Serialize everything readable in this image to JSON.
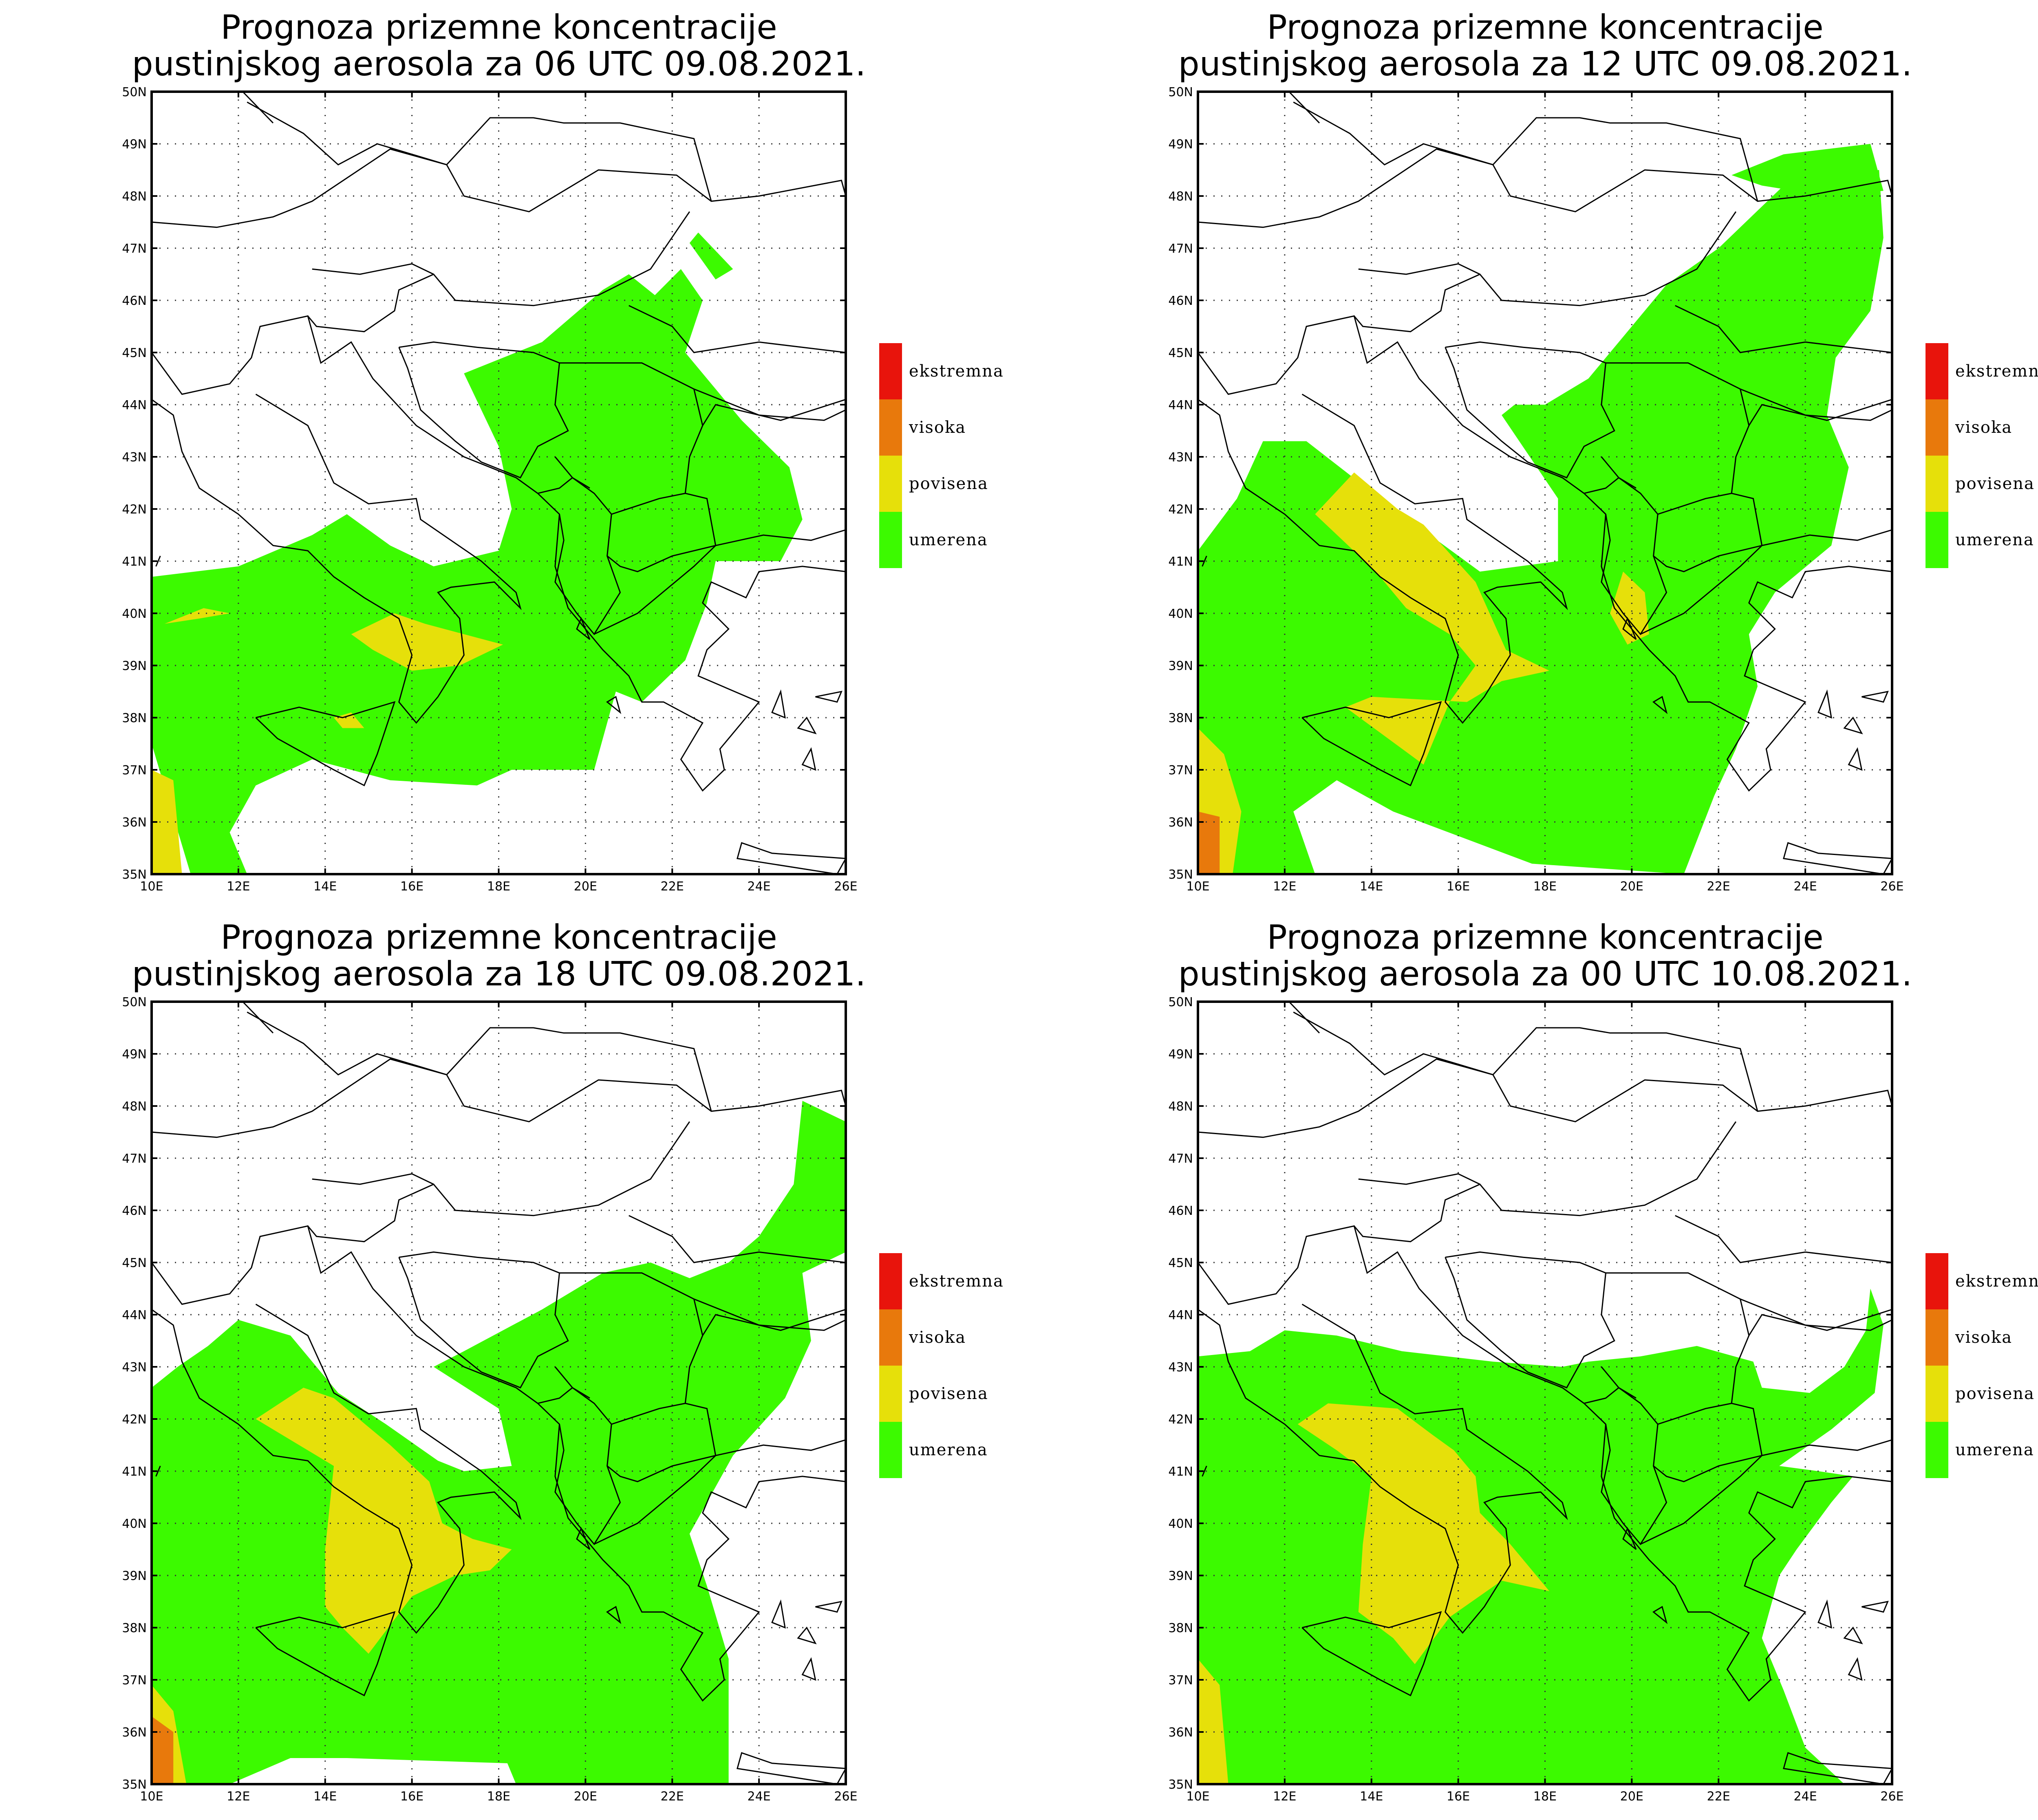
{
  "panels": [
    {
      "title_line1": "Prognoza prizemne koncentracije",
      "title_line2": "pustinjskog aerosola za 06 UTC 09.08.2021."
    },
    {
      "title_line1": "Prognoza prizemne koncentracije",
      "title_line2": "pustinjskog aerosola za 12 UTC 09.08.2021."
    },
    {
      "title_line1": "Prognoza prizemne koncentracije",
      "title_line2": "pustinjskog aerosola za 18 UTC 09.08.2021."
    },
    {
      "title_line1": "Prognoza prizemne koncentracije",
      "title_line2": "pustinjskog aerosola za 00 UTC 10.08.2021."
    }
  ],
  "axes": {
    "lon_labels": [
      "10E",
      "12E",
      "14E",
      "16E",
      "18E",
      "20E",
      "22E",
      "24E",
      "26E"
    ],
    "lat_labels": [
      "35N",
      "36N",
      "37N",
      "38N",
      "39N",
      "40N",
      "41N",
      "42N",
      "43N",
      "44N",
      "45N",
      "46N",
      "47N",
      "48N",
      "49N",
      "50N"
    ],
    "lon_range": [
      10,
      26
    ],
    "lat_range": [
      35,
      50
    ]
  },
  "legend": [
    {
      "label": "ekstremna",
      "color": "#e8140c"
    },
    {
      "label": "visoka",
      "color": "#e8790c"
    },
    {
      "label": "povisena",
      "color": "#e6e00a"
    },
    {
      "label": "umerena",
      "color": "#3cfa00"
    }
  ]
}
